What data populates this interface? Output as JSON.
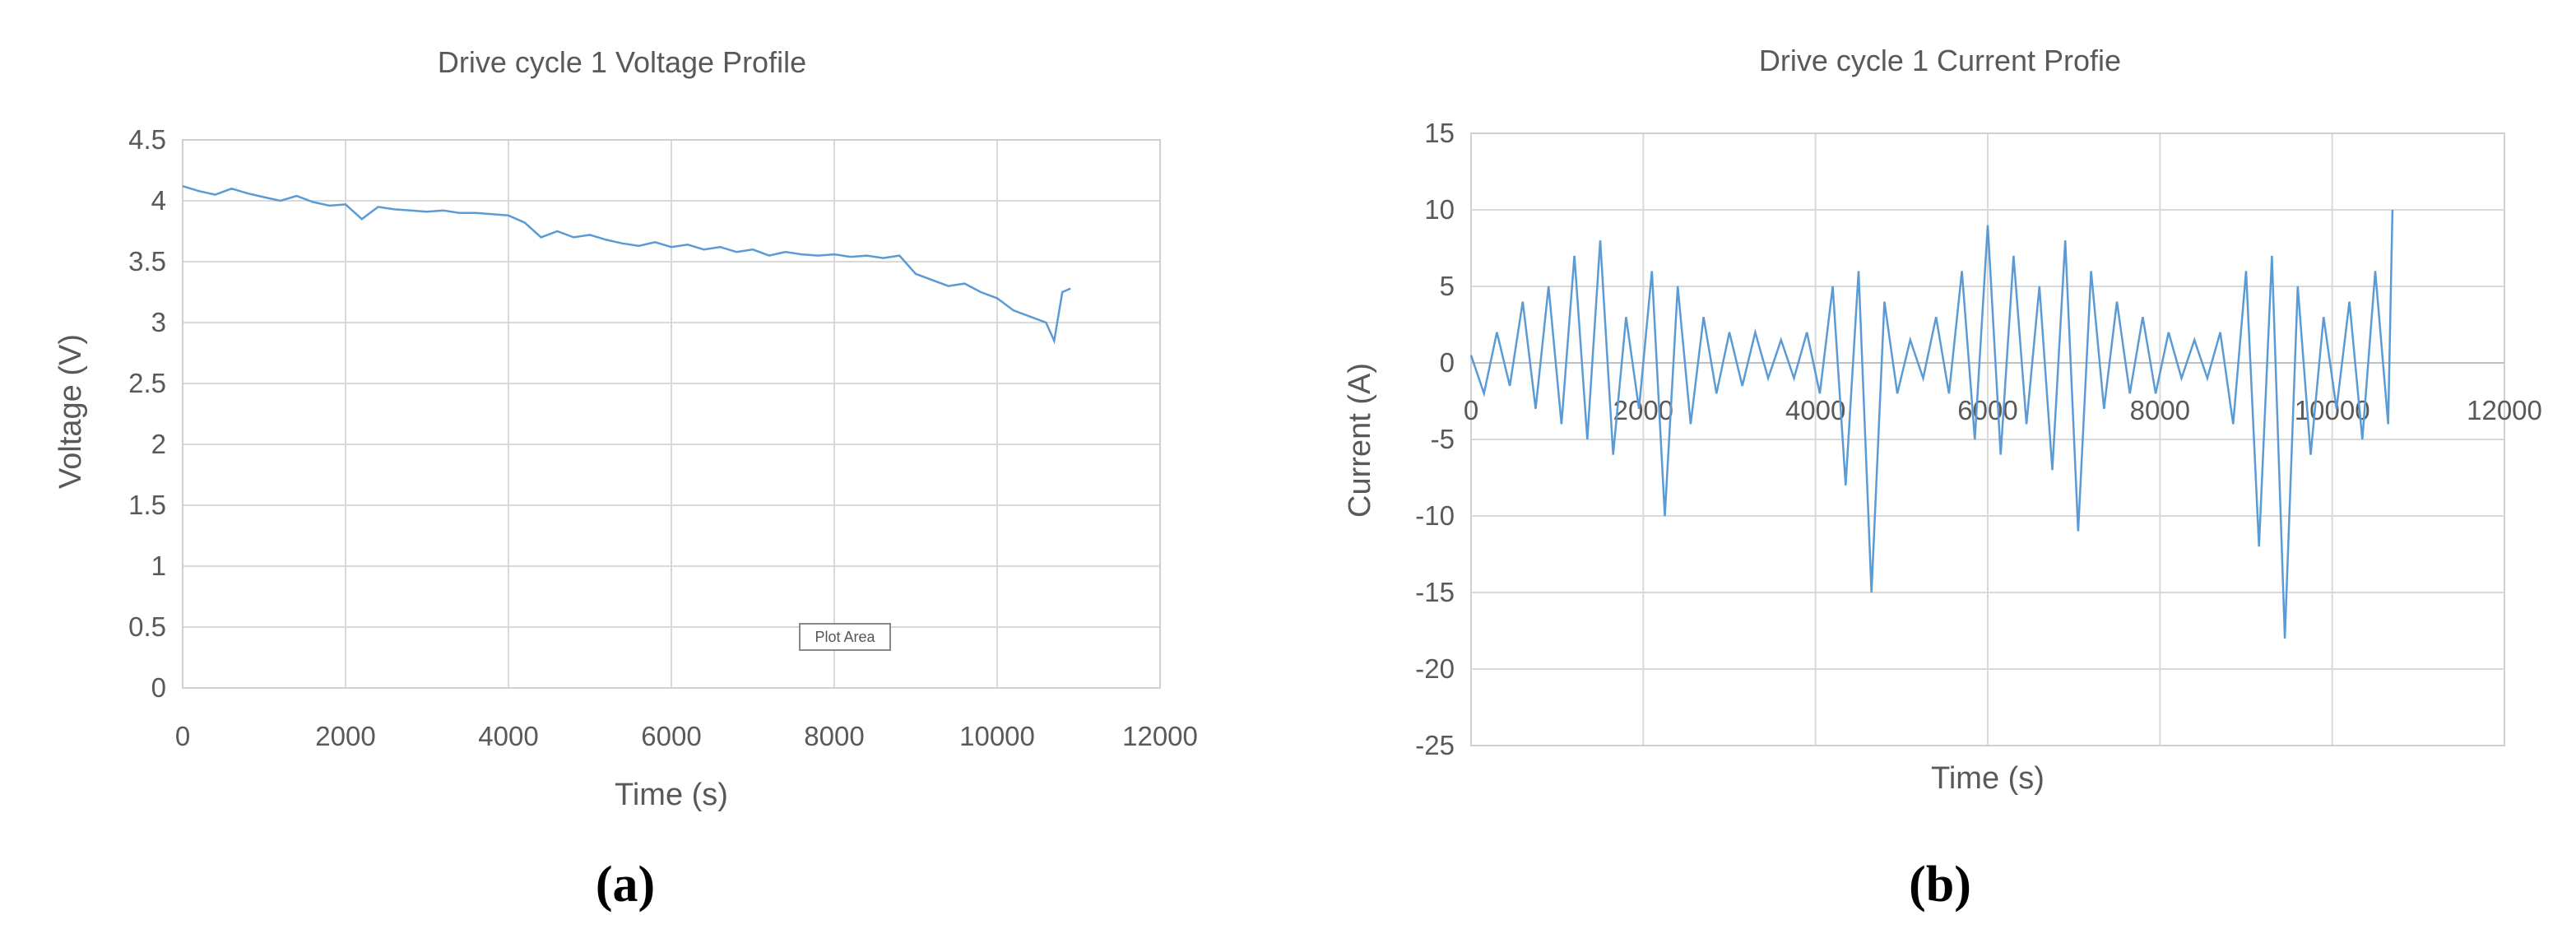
{
  "chart_data": [
    {
      "type": "line",
      "title": "Drive cycle 1 Voltage Profile",
      "xlabel": "Time (s)",
      "ylabel": "Voltage (V)",
      "xlim": [
        0,
        12000
      ],
      "ylim": [
        0,
        4.5
      ],
      "x_ticks": [
        "0",
        "2000",
        "4000",
        "6000",
        "8000",
        "10000",
        "12000"
      ],
      "y_ticks": [
        "0",
        "0.5",
        "1",
        "1.5",
        "2",
        "2.5",
        "3",
        "3.5",
        "4",
        "4.5"
      ],
      "grid": true,
      "legend": "none",
      "line_color": "#5b9bd5",
      "tooltip": "Plot Area",
      "panel_label": "(a)",
      "series": [
        {
          "x": [
            0,
            200,
            400,
            600,
            800,
            1000,
            1200,
            1400,
            1600,
            1800,
            2000,
            2200,
            2400,
            2600,
            2800,
            3000,
            3200,
            3400,
            3600,
            3800,
            4000,
            4200,
            4400,
            4600,
            4800,
            5000,
            5200,
            5400,
            5600,
            5800,
            6000,
            6200,
            6400,
            6600,
            6800,
            7000,
            7200,
            7400,
            7600,
            7800,
            8000,
            8200,
            8400,
            8600,
            8800,
            9000,
            9200,
            9400,
            9600,
            9800,
            10000,
            10200,
            10400,
            10600,
            10700,
            10800,
            10900
          ],
          "values": [
            4.12,
            4.08,
            4.05,
            4.1,
            4.06,
            4.03,
            4.0,
            4.04,
            3.99,
            3.96,
            3.97,
            3.85,
            3.95,
            3.93,
            3.92,
            3.91,
            3.92,
            3.9,
            3.9,
            3.89,
            3.88,
            3.82,
            3.7,
            3.75,
            3.7,
            3.72,
            3.68,
            3.65,
            3.63,
            3.66,
            3.62,
            3.64,
            3.6,
            3.62,
            3.58,
            3.6,
            3.55,
            3.58,
            3.56,
            3.55,
            3.56,
            3.54,
            3.55,
            3.53,
            3.55,
            3.4,
            3.35,
            3.3,
            3.32,
            3.25,
            3.2,
            3.1,
            3.05,
            3.0,
            2.85,
            3.25,
            3.28
          ]
        }
      ]
    },
    {
      "type": "line",
      "title": "Drive cycle 1 Current Profie",
      "xlabel": "Time (s)",
      "ylabel": "Current (A)",
      "xlim": [
        0,
        12000
      ],
      "ylim": [
        -25,
        15
      ],
      "x_ticks": [
        "0",
        "2000",
        "4000",
        "6000",
        "8000",
        "10000",
        "12000"
      ],
      "y_ticks": [
        "-25",
        "-20",
        "-15",
        "-10",
        "-5",
        "0",
        "5",
        "10",
        "15"
      ],
      "grid": true,
      "legend": "none",
      "line_color": "#5b9bd5",
      "panel_label": "(b)",
      "series": [
        {
          "x": [
            0,
            150,
            300,
            450,
            600,
            750,
            900,
            1050,
            1200,
            1350,
            1500,
            1650,
            1800,
            1950,
            2100,
            2250,
            2400,
            2550,
            2700,
            2850,
            3000,
            3150,
            3300,
            3450,
            3600,
            3750,
            3900,
            4050,
            4200,
            4350,
            4500,
            4650,
            4800,
            4950,
            5100,
            5250,
            5400,
            5550,
            5700,
            5850,
            6000,
            6150,
            6300,
            6450,
            6600,
            6750,
            6900,
            7050,
            7200,
            7350,
            7500,
            7650,
            7800,
            7950,
            8100,
            8250,
            8400,
            8550,
            8700,
            8850,
            9000,
            9150,
            9300,
            9450,
            9600,
            9750,
            9900,
            10050,
            10200,
            10350,
            10500,
            10650,
            10700
          ],
          "values": [
            0.5,
            -2,
            2,
            -1.5,
            4,
            -3,
            5,
            -4,
            7,
            -5,
            8,
            -6,
            3,
            -3,
            6,
            -10,
            5,
            -4,
            3,
            -2,
            2,
            -1.5,
            2,
            -1,
            1.5,
            -1,
            2,
            -2,
            5,
            -8,
            6,
            -15,
            4,
            -2,
            1.5,
            -1,
            3,
            -2,
            6,
            -5,
            9,
            -6,
            7,
            -4,
            5,
            -7,
            8,
            -11,
            6,
            -3,
            4,
            -2,
            3,
            -2,
            2,
            -1,
            1.5,
            -1,
            2,
            -4,
            6,
            -12,
            7,
            -18,
            5,
            -6,
            3,
            -3,
            4,
            -5,
            6,
            -4,
            10
          ]
        }
      ]
    }
  ]
}
